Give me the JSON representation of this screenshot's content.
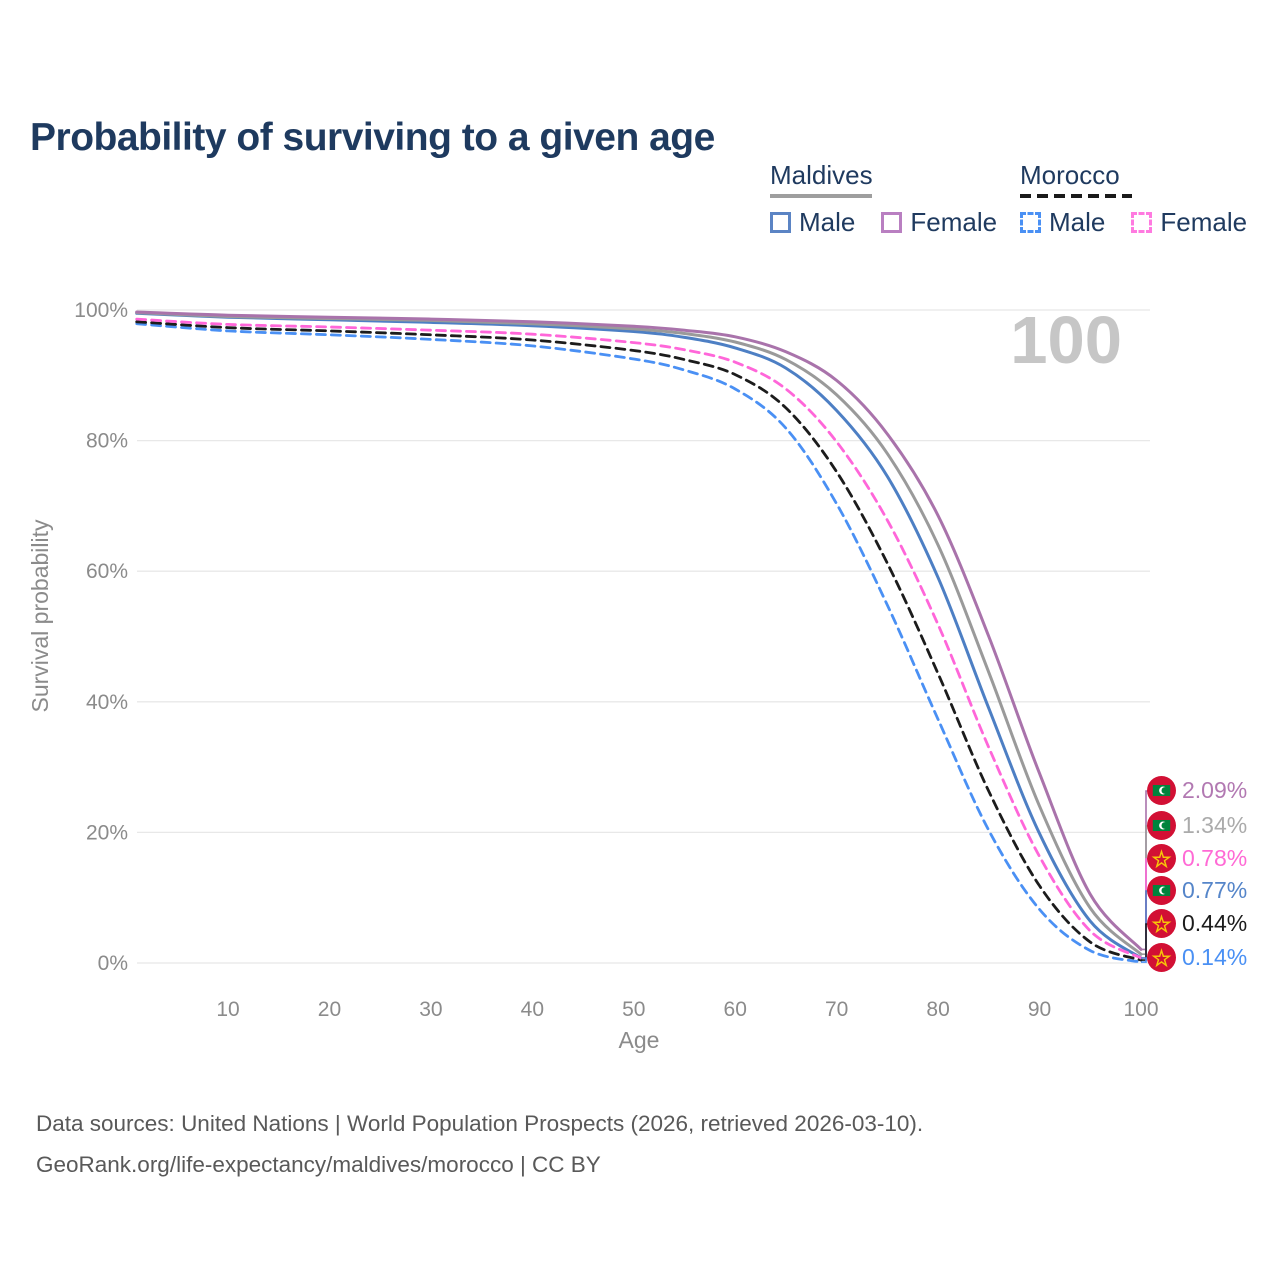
{
  "title": "Probability of surviving to a given age",
  "watermark_age": "100",
  "legend": {
    "groups": [
      {
        "label": "Maldives",
        "style": "solid",
        "underline_color": "#9e9e9e",
        "items": [
          {
            "label": "Male",
            "color": "#5b84c4"
          },
          {
            "label": "Female",
            "color": "#b97fc1"
          }
        ]
      },
      {
        "label": "Morocco",
        "style": "dashed",
        "underline_color": "#1a1a1a",
        "items": [
          {
            "label": "Male",
            "color": "#4a90f4"
          },
          {
            "label": "Female",
            "color": "#ff7ae0"
          }
        ]
      }
    ]
  },
  "chart_data": {
    "type": "line",
    "title": "Probability of surviving to a given age",
    "xlabel": "Age",
    "ylabel": "Survival probability",
    "xlim": [
      1,
      100
    ],
    "ylim": [
      0,
      100
    ],
    "grid": "horizontal",
    "x_ticks": [
      10,
      20,
      30,
      40,
      50,
      60,
      70,
      80,
      90,
      100
    ],
    "y_ticks": [
      {
        "value": 100,
        "label": "100%"
      },
      {
        "value": 80,
        "label": "80%"
      },
      {
        "value": 60,
        "label": "60%"
      },
      {
        "value": 40,
        "label": "40%"
      },
      {
        "value": 20,
        "label": "20%"
      },
      {
        "value": 0,
        "label": "0%"
      }
    ],
    "hovered_age": "100",
    "ages": [
      1,
      10,
      20,
      30,
      40,
      50,
      55,
      60,
      65,
      70,
      75,
      80,
      85,
      90,
      95,
      100
    ],
    "series": [
      {
        "name": "Maldives Female",
        "country": "Maldives",
        "sex": "Female",
        "color": "#a973ab",
        "label_color": "#b279b2",
        "dashed": false,
        "end_label": "2.09%",
        "values": [
          99.7,
          99.2,
          98.9,
          98.6,
          98.2,
          97.5,
          96.9,
          95.9,
          93.6,
          89.2,
          81.0,
          68.5,
          50.0,
          29.0,
          10.5,
          2.09
        ]
      },
      {
        "name": "Maldives (both sexes)",
        "country": "Maldives",
        "sex": "Both",
        "color": "#9a9a9a",
        "label_color": "#ababab",
        "dashed": false,
        "end_label": "1.34%",
        "values": [
          99.6,
          99.0,
          98.7,
          98.4,
          97.9,
          97.1,
          96.4,
          95.1,
          92.4,
          87.0,
          78.0,
          64.0,
          44.5,
          24.0,
          8.4,
          1.34
        ]
      },
      {
        "name": "Morocco Female",
        "country": "Morocco",
        "sex": "Female",
        "color": "#ff66d9",
        "label_color": "#ff6ad5",
        "dashed": true,
        "end_label": "0.78%",
        "values": [
          98.6,
          97.8,
          97.4,
          96.9,
          96.3,
          95.0,
          93.9,
          92.0,
          87.9,
          79.8,
          67.8,
          51.8,
          33.0,
          16.3,
          4.9,
          0.78
        ]
      },
      {
        "name": "Maldives Male",
        "country": "Maldives",
        "sex": "Male",
        "color": "#4d7fc4",
        "label_color": "#5585c9",
        "dashed": false,
        "end_label": "0.77%",
        "values": [
          99.5,
          98.9,
          98.5,
          98.1,
          97.6,
          96.7,
          95.8,
          94.2,
          91.1,
          84.6,
          74.5,
          59.0,
          39.0,
          19.8,
          6.4,
          0.77
        ]
      },
      {
        "name": "Morocco (both sexes)",
        "country": "Morocco",
        "sex": "Both",
        "color": "#1c1c1c",
        "label_color": "#1c1c1c",
        "dashed": true,
        "end_label": "0.44%",
        "values": [
          98.2,
          97.3,
          96.8,
          96.2,
          95.4,
          93.8,
          92.4,
          90.1,
          85.0,
          75.2,
          61.2,
          44.3,
          26.3,
          11.8,
          3.2,
          0.44
        ]
      },
      {
        "name": "Morocco Male",
        "country": "Morocco",
        "sex": "Male",
        "color": "#4a90f4",
        "label_color": "#4a90f4",
        "dashed": true,
        "end_label": "0.14%",
        "values": [
          97.9,
          96.8,
          96.2,
          95.5,
          94.5,
          92.5,
          90.8,
          87.9,
          81.9,
          70.3,
          54.8,
          37.3,
          20.3,
          8.2,
          1.9,
          0.14
        ]
      }
    ]
  },
  "footer": {
    "line1": "Data sources: United Nations | World Population Prospects (2026, retrieved 2026-03-10).",
    "line2": "GeoRank.org/life-expectancy/maldives/morocco | CC BY"
  }
}
